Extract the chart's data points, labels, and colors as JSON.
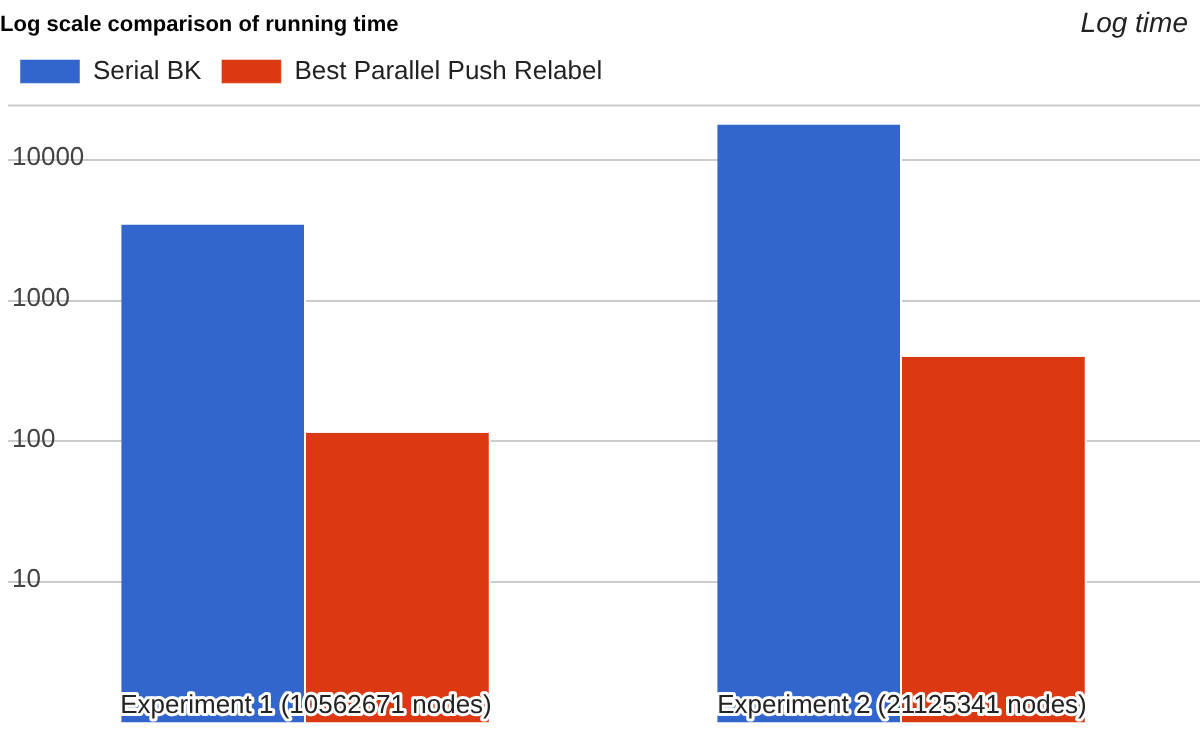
{
  "chart_data": {
    "type": "bar",
    "title": "Log scale comparison of running time",
    "ylabel": "Log time",
    "categories": [
      "Experiment 1 (10562671 nodes)",
      "Experiment 2 (21125341 nodes)"
    ],
    "series": [
      {
        "name": "Serial BK",
        "color": "#3366cc",
        "values": [
          3500,
          18000
        ]
      },
      {
        "name": "Best Parallel Push Relabel",
        "color": "#dc3912",
        "values": [
          115,
          400
        ]
      }
    ],
    "log": "y",
    "ylim": [
      1,
      25000
    ],
    "yticks": [
      10,
      100,
      1000,
      10000
    ],
    "grid": "y",
    "legend": "top left"
  }
}
